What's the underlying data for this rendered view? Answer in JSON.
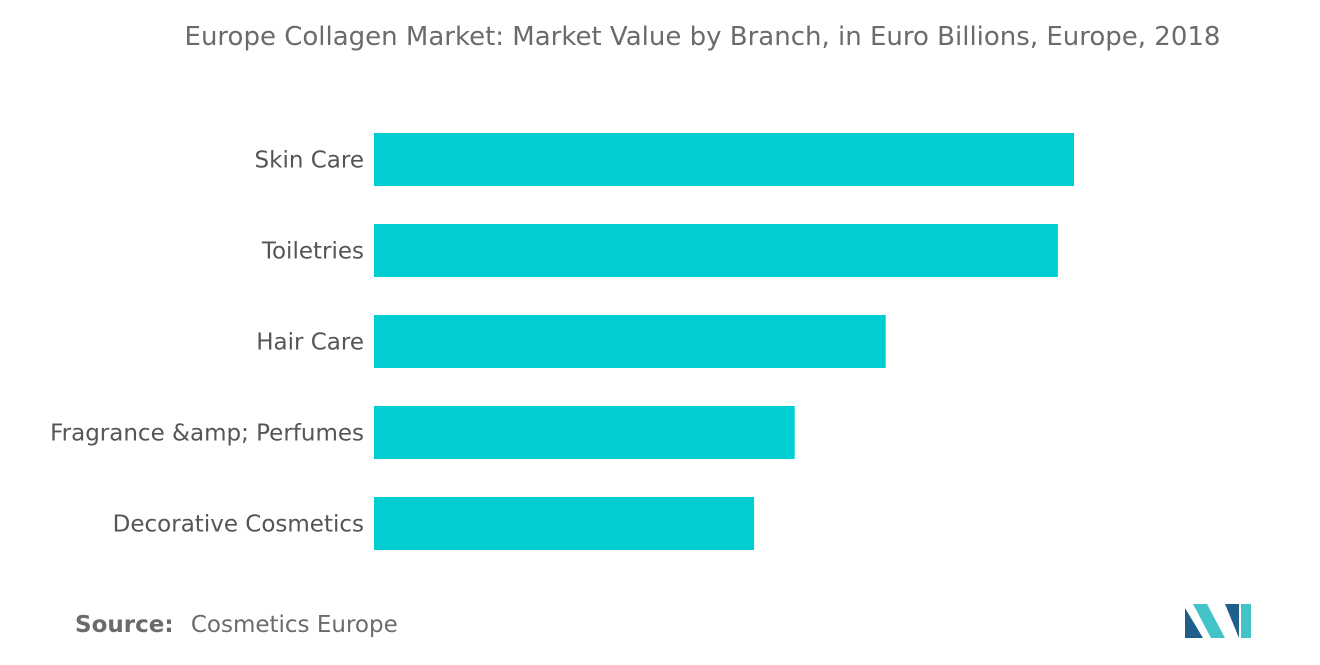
{
  "chart_data": {
    "type": "bar",
    "orientation": "horizontal",
    "title": "Europe Collagen Market: Market Value by Branch, in Euro Billions, Europe, 2018",
    "categories": [
      "Skin Care",
      "Toiletries",
      "Hair Care",
      "Fragrance &amp; Perfumes",
      "Decorative Cosmetics"
    ],
    "values": [
      100,
      97.7,
      73.1,
      60.1,
      54.3
    ],
    "xlim": [
      0,
      100
    ],
    "grid": false,
    "legend": "none",
    "bar_color": "#00CED1"
  },
  "source": {
    "label": "Source:",
    "text": "Cosmetics Europe"
  },
  "logo": {
    "icon": "mordor-intelligence-logo",
    "colors": [
      "#1f5f8b",
      "#41c3c8"
    ]
  }
}
